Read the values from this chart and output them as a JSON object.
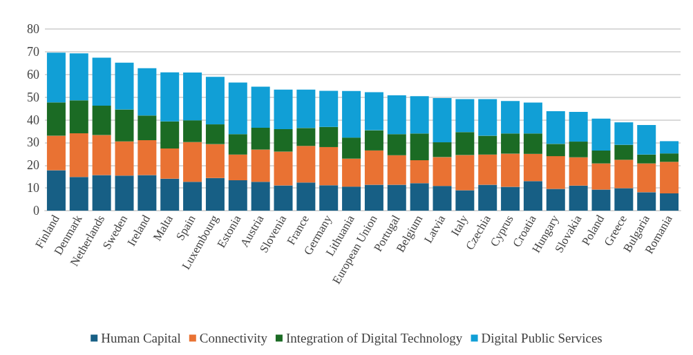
{
  "chart_data": {
    "type": "bar",
    "stacked": true,
    "categories": [
      "Finland",
      "Denmark",
      "Netherlands",
      "Sweden",
      "Ireland",
      "Malta",
      "Spain",
      "Luxembourg",
      "Estonia",
      "Austria",
      "Slovenia",
      "France",
      "Germany",
      "Lithuania",
      "European Union",
      "Portugal",
      "Belgium",
      "Latvia",
      "Italy",
      "Czechia",
      "Cyprus",
      "Croatia",
      "Hungary",
      "Slovakia",
      "Poland",
      "Greece",
      "Bulgaria",
      "Romania"
    ],
    "series": [
      {
        "name": "Human Capital",
        "color": "#175f85",
        "values": [
          17.8,
          14.8,
          15.7,
          15.4,
          15.7,
          14.1,
          12.7,
          14.4,
          13.4,
          12.7,
          11.1,
          12.4,
          11.2,
          10.6,
          11.4,
          11.4,
          12.1,
          10.9,
          9.0,
          11.4,
          10.5,
          13.0,
          9.6,
          11.0,
          9.3,
          9.9,
          8.1,
          7.6
        ]
      },
      {
        "name": "Connectivity",
        "color": "#e97233",
        "values": [
          15.2,
          19.3,
          17.6,
          15.1,
          15.3,
          13.3,
          17.5,
          14.9,
          11.3,
          14.2,
          14.9,
          16.1,
          16.8,
          12.3,
          15.1,
          13.0,
          10.1,
          12.7,
          15.5,
          13.3,
          14.6,
          12.0,
          14.4,
          12.5,
          11.5,
          12.5,
          12.7,
          13.9
        ]
      },
      {
        "name": "Integration of Digital Technology",
        "color": "#1b6b24",
        "values": [
          14.7,
          14.5,
          12.9,
          14.1,
          10.9,
          11.9,
          9.6,
          8.7,
          9.0,
          9.6,
          9.9,
          7.9,
          8.9,
          9.3,
          8.9,
          9.3,
          11.8,
          6.5,
          10.1,
          8.3,
          8.9,
          9.0,
          5.4,
          6.9,
          5.7,
          6.6,
          3.9,
          3.7
        ]
      },
      {
        "name": "Digital Public Services",
        "color": "#119fd6",
        "values": [
          21.9,
          20.7,
          21.2,
          20.6,
          20.8,
          21.6,
          21.0,
          20.9,
          22.7,
          18.1,
          17.4,
          16.9,
          15.9,
          20.5,
          16.8,
          17.1,
          16.4,
          19.5,
          14.5,
          16.1,
          14.3,
          13.6,
          14.4,
          13.1,
          14.0,
          9.9,
          13.0,
          5.4
        ]
      }
    ],
    "ylim": [
      0,
      80
    ],
    "yticks": [
      0,
      10,
      20,
      30,
      40,
      50,
      60,
      70,
      80
    ],
    "grid": "y",
    "legend": "bottom"
  }
}
